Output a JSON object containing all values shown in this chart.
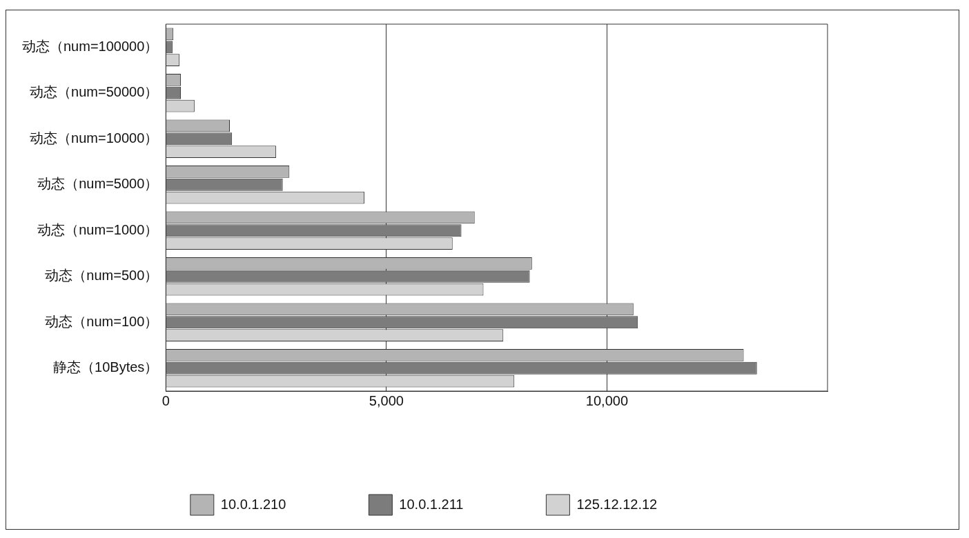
{
  "chart_data": {
    "type": "bar",
    "orientation": "horizontal",
    "categories": [
      "动态（num=100000）",
      "动态（num=50000）",
      "动态（num=10000）",
      "动态（num=5000）",
      "动态（num=1000）",
      "动态（num=500）",
      "动态（num=100）",
      "静态（10Bytes）"
    ],
    "series": [
      {
        "name": "10.0.1.210",
        "color": "#b4b4b4",
        "values": [
          170,
          340,
          1450,
          2800,
          7000,
          8300,
          10600,
          13100
        ]
      },
      {
        "name": "10.0.1.211",
        "color": "#7c7c7c",
        "values": [
          150,
          340,
          1500,
          2650,
          6700,
          8250,
          10700,
          13400
        ]
      },
      {
        "name": "125.12.12.12",
        "color": "#d2d2d2",
        "values": [
          310,
          650,
          2500,
          4500,
          6500,
          7200,
          7650,
          7900
        ]
      }
    ],
    "xlim": [
      0,
      15000
    ],
    "xticks": [
      0,
      {
        "value": 5000,
        "label": "5,000"
      },
      {
        "value": 10000,
        "label": "10,000"
      }
    ],
    "grid": "x",
    "legend": "bottom"
  }
}
